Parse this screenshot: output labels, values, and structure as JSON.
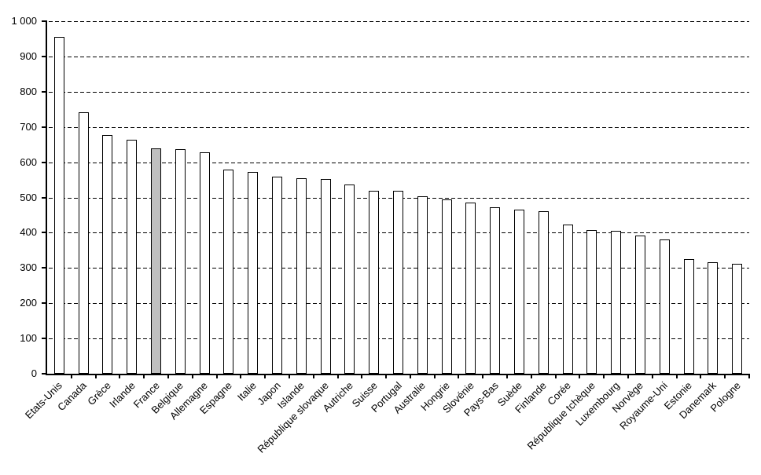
{
  "chart_data": {
    "type": "bar",
    "title": "",
    "xlabel": "",
    "ylabel": "",
    "categories": [
      "Etats-Unis",
      "Canada",
      "Grèce",
      "Irlande",
      "France",
      "Belgique",
      "Allemagne",
      "Espagne",
      "Italie",
      "Japon",
      "Islande",
      "République slovaque",
      "Autriche",
      "Suisse",
      "Portugal",
      "Australie",
      "Hongrie",
      "Slovénie",
      "Pays-Bas",
      "Suède",
      "Finlande",
      "Corée",
      "République tchèque",
      "Luxembourg",
      "Norvège",
      "Royaume-Uni",
      "Estonie",
      "Danemark",
      "Pologne"
    ],
    "values": [
      955,
      742,
      676,
      663,
      640,
      638,
      628,
      578,
      573,
      558,
      555,
      553,
      537,
      520,
      518,
      503,
      495,
      486,
      472,
      465,
      462,
      423,
      408,
      406,
      392,
      381,
      325,
      317,
      311
    ],
    "ylim": [
      0,
      1000
    ],
    "ytick_step": 100,
    "ytick_labels": [
      "0",
      "100",
      "200",
      "300",
      "400",
      "500",
      "600",
      "700",
      "800",
      "900",
      "1 000"
    ],
    "grid": "horizontal-dashed",
    "legend_position": "none",
    "bar_fill": "#ffffff",
    "bar_border": "#000000",
    "highlight_category": "France",
    "highlight_color": "#c0c0c0",
    "x_labels_rotation_deg": -45
  }
}
